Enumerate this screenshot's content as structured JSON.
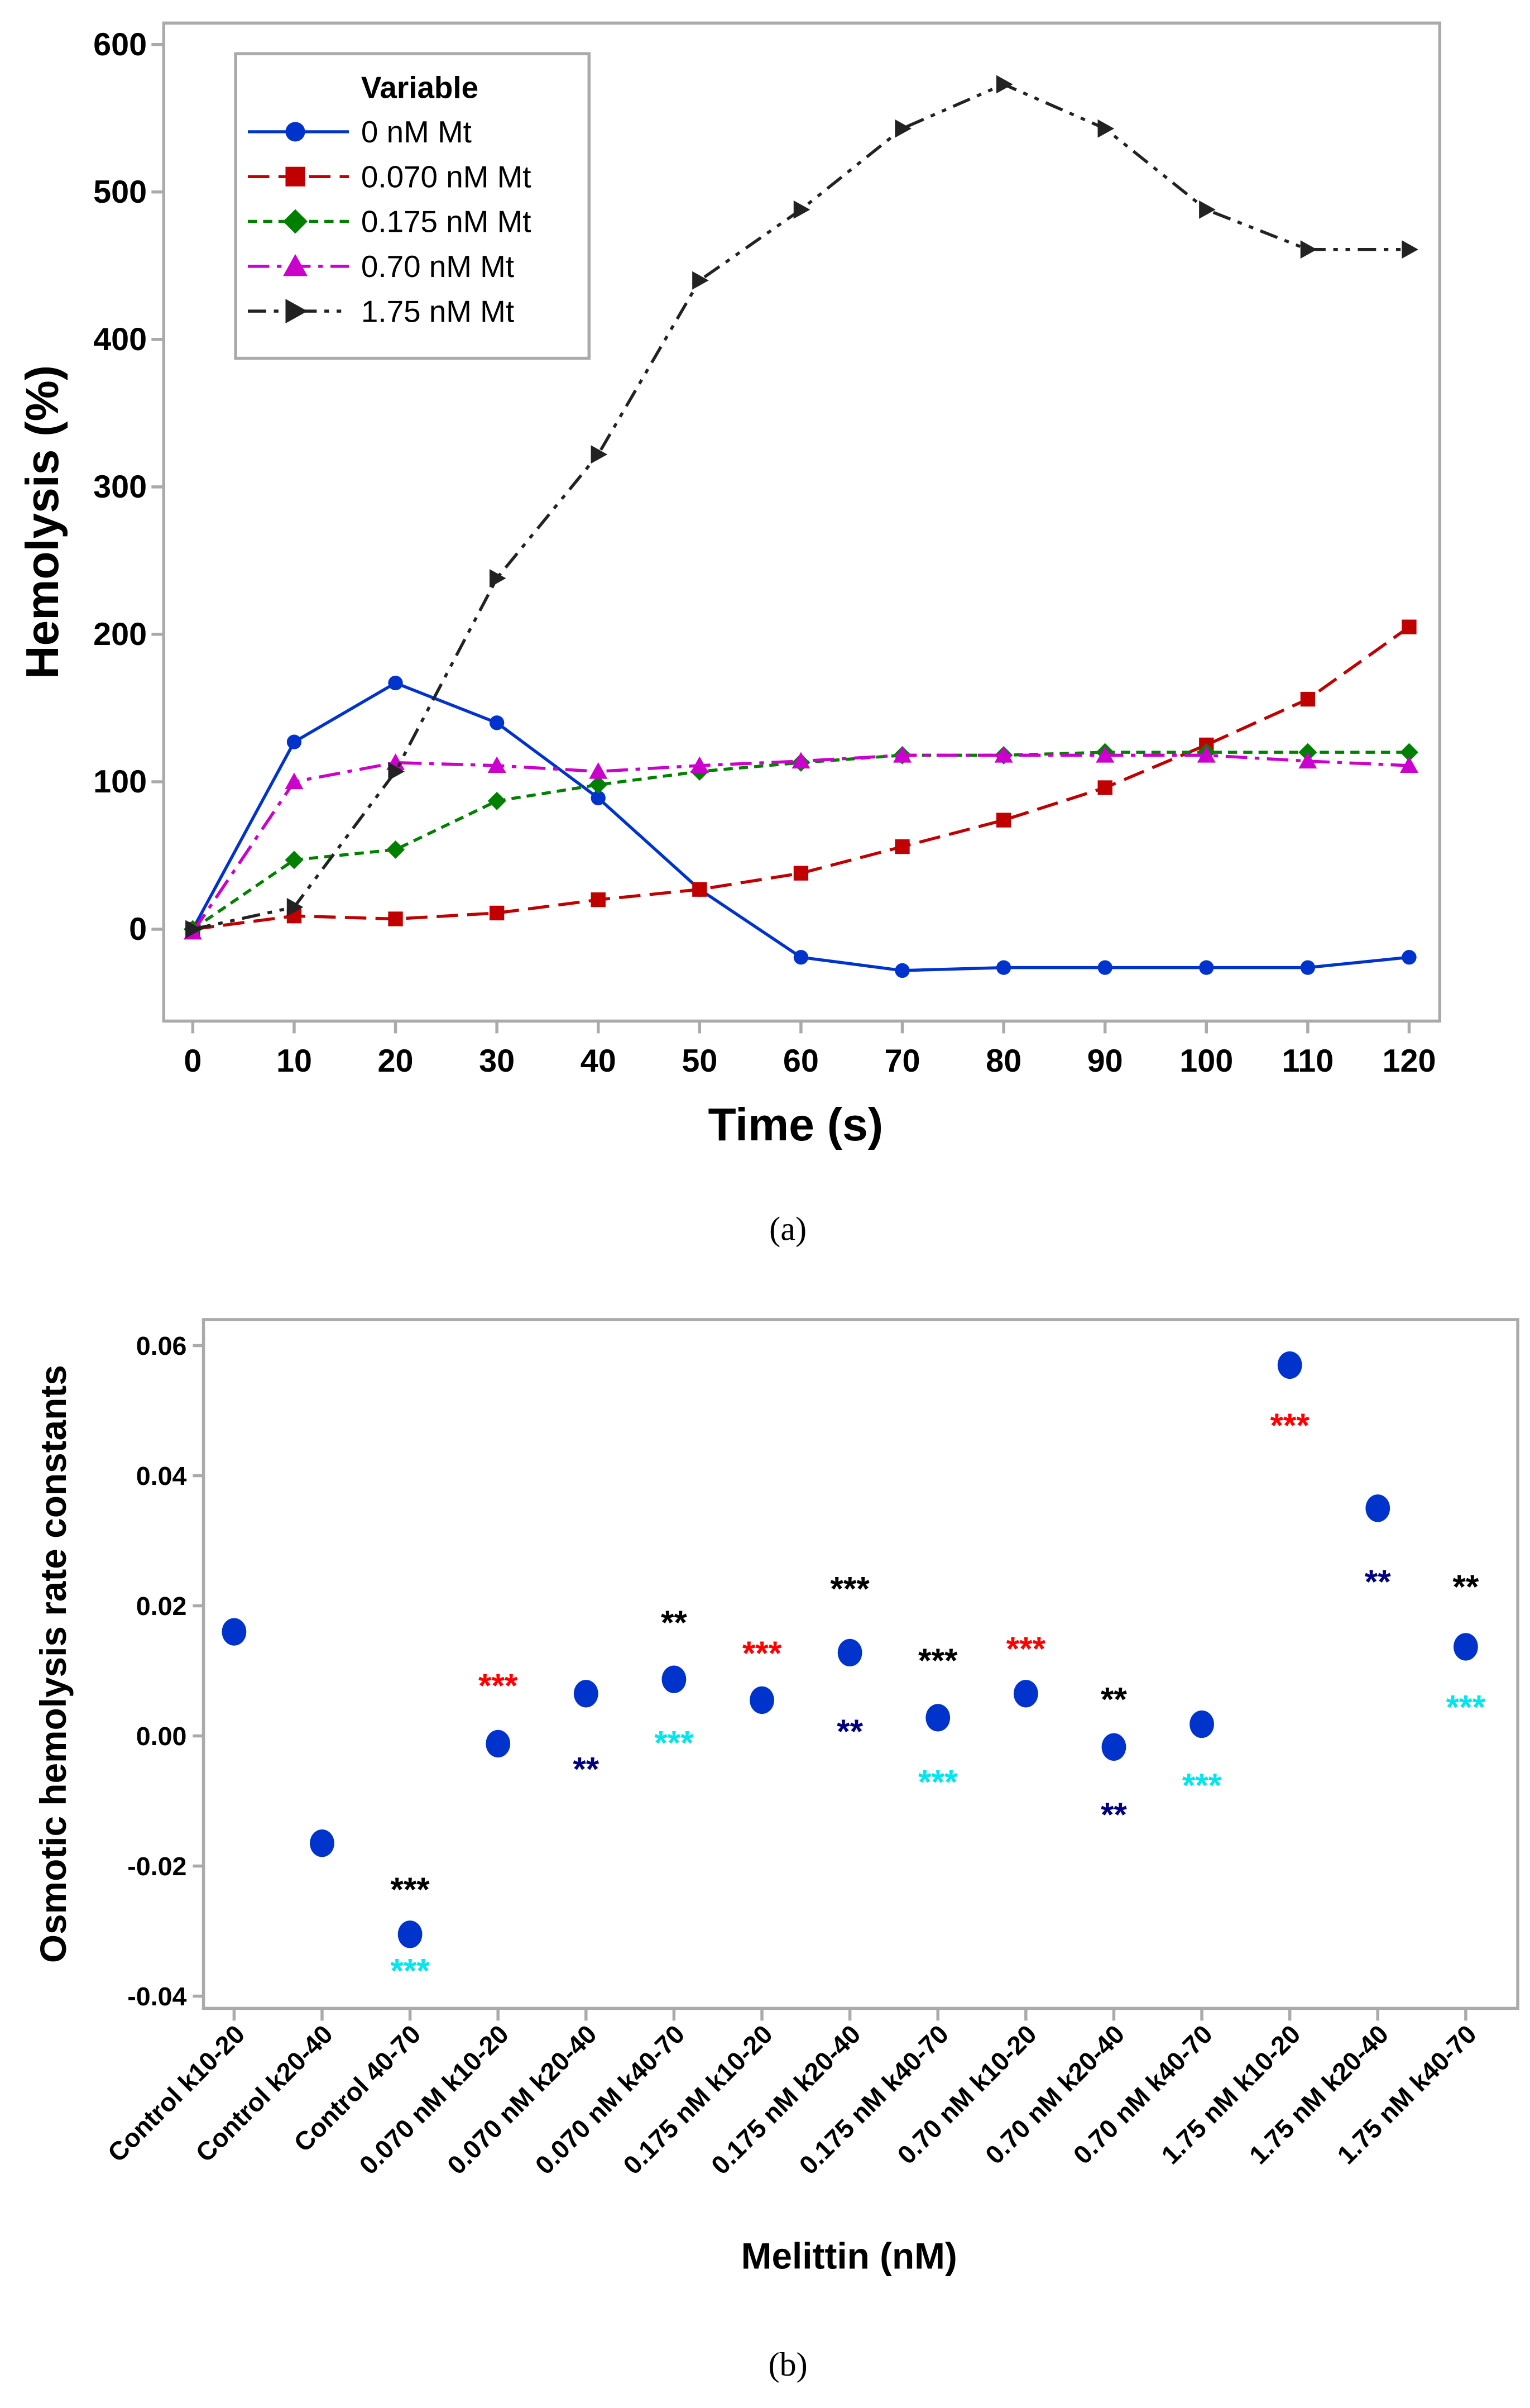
{
  "chart_data": [
    {
      "type": "line",
      "caption": "(a)",
      "xlabel": "Time (s)",
      "ylabel": "Hemolysis (%)",
      "xlim": [
        0,
        120
      ],
      "ylim": [
        -60,
        600
      ],
      "xticks": [
        0,
        10,
        20,
        30,
        40,
        50,
        60,
        70,
        80,
        90,
        100,
        110,
        120
      ],
      "yticks": [
        0,
        100,
        200,
        300,
        400,
        500,
        600
      ],
      "legend_title": "Variable",
      "legend_position": "top-left",
      "x": [
        0,
        10,
        20,
        30,
        40,
        50,
        60,
        70,
        80,
        90,
        100,
        110,
        120
      ],
      "series": [
        {
          "name": "0 nM Mt",
          "color": "#0033cc",
          "marker": "circle",
          "dash": "",
          "values": [
            0,
            127,
            167,
            140,
            89,
            27,
            -19,
            -28,
            -26,
            -26,
            -26,
            -26,
            -19
          ]
        },
        {
          "name": "0.070 nM Mt",
          "color": "#c00000",
          "marker": "square",
          "dash": "14,6",
          "values": [
            0,
            9,
            7,
            11,
            20,
            27,
            38,
            56,
            74,
            96,
            125,
            156,
            205
          ]
        },
        {
          "name": "0.175 nM Mt",
          "color": "#008000",
          "marker": "diamond",
          "dash": "6,4",
          "values": [
            0,
            47,
            54,
            87,
            98,
            107,
            113,
            118,
            118,
            120,
            120,
            120,
            120
          ]
        },
        {
          "name": "0.70 nM Mt",
          "color": "#cc00cc",
          "marker": "triangle",
          "dash": "14,5,3,5",
          "values": [
            -2,
            100,
            113,
            111,
            107,
            111,
            114,
            118,
            118,
            118,
            118,
            114,
            111
          ]
        },
        {
          "name": "1.75 nM Mt",
          "color": "#222222",
          "marker": "triangle-right",
          "dash": "12,5,3,5,3,5",
          "values": [
            0,
            15,
            107,
            238,
            322,
            440,
            488,
            543,
            573,
            543,
            488,
            461,
            461
          ]
        }
      ]
    },
    {
      "type": "scatter",
      "caption": "(b)",
      "xlabel": "Melittin (nM)",
      "ylabel": "Osmotic hemolysis rate constants",
      "ylim": [
        -0.04,
        0.06
      ],
      "yticks": [
        "-0.04",
        "-0.02",
        "0.00",
        "0.02",
        "0.04",
        "0.06"
      ],
      "categories": [
        "Control k10-20",
        "Control k20-40",
        "Control 40-70",
        "0.070 nM k10-20",
        "0.070 nM k20-40",
        "0.070 nM k40-70",
        "0.175 nM k10-20",
        "0.175 nM k20-40",
        "0.175 nM k40-70",
        "0.70 nM k10-20",
        "0.70 nM k20-40",
        "0.70 nM k40-70",
        "1.75 nM k10-20",
        "1.75 nM k20-40",
        "1.75 nM k40-70"
      ],
      "values": [
        0.016,
        -0.0165,
        -0.0305,
        -0.0012,
        0.0065,
        0.0087,
        0.0055,
        0.0128,
        0.0028,
        0.0065,
        -0.0017,
        0.0018,
        0.057,
        0.035,
        0.0137
      ],
      "marker_color": "#0033cc",
      "annotations": [
        {
          "index": 2,
          "text": "***",
          "color": "#000000",
          "y": -0.023
        },
        {
          "index": 2,
          "text": "***",
          "color": "#00e5ee",
          "y": -0.0355
        },
        {
          "index": 3,
          "text": "***",
          "color": "#ff0000",
          "y": 0.0083
        },
        {
          "index": 4,
          "text": "**",
          "color": "#000080",
          "y": -0.0045
        },
        {
          "index": 5,
          "text": "**",
          "color": "#000000",
          "y": 0.018
        },
        {
          "index": 5,
          "text": "***",
          "color": "#00e5ee",
          "y": -0.0005
        },
        {
          "index": 6,
          "text": "***",
          "color": "#ff0000",
          "y": 0.0133
        },
        {
          "index": 7,
          "text": "***",
          "color": "#000000",
          "y": 0.0232
        },
        {
          "index": 7,
          "text": "**",
          "color": "#000080",
          "y": 0.0013
        },
        {
          "index": 8,
          "text": "***",
          "color": "#000000",
          "y": 0.0122
        },
        {
          "index": 8,
          "text": "***",
          "color": "#00e5ee",
          "y": -0.0065
        },
        {
          "index": 9,
          "text": "***",
          "color": "#ff0000",
          "y": 0.014
        },
        {
          "index": 10,
          "text": "**",
          "color": "#000080",
          "y": -0.0115
        },
        {
          "index": 10,
          "text": "**",
          "color": "#000000",
          "y": 0.0062
        },
        {
          "index": 11,
          "text": "***",
          "color": "#00e5ee",
          "y": -0.007
        },
        {
          "index": 12,
          "text": "***",
          "color": "#ff0000",
          "y": 0.0483
        },
        {
          "index": 13,
          "text": "**",
          "color": "#000080",
          "y": 0.0243
        },
        {
          "index": 14,
          "text": "**",
          "color": "#000000",
          "y": 0.0235
        },
        {
          "index": 14,
          "text": "***",
          "color": "#00e5ee",
          "y": 0.005
        }
      ]
    }
  ]
}
